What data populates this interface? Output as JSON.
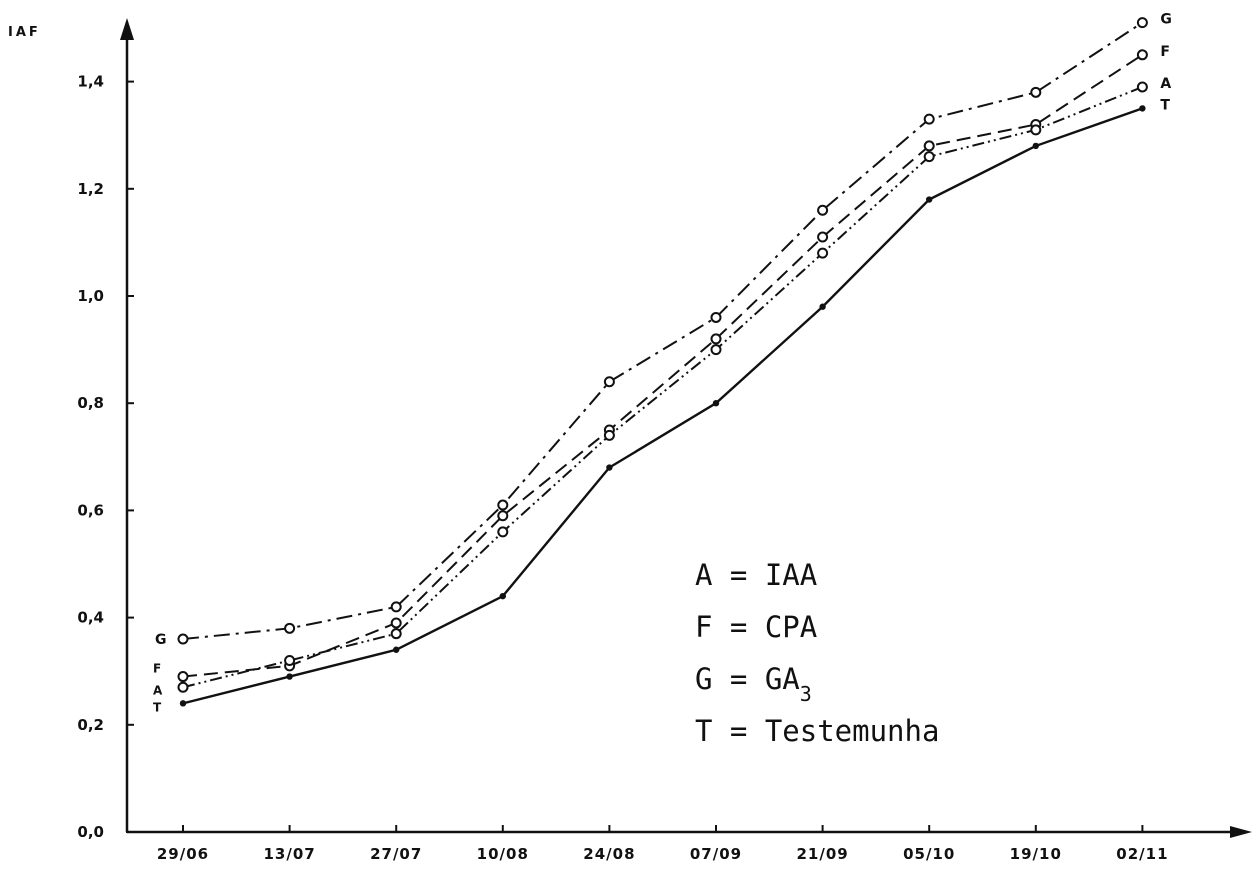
{
  "chart_data": {
    "type": "line",
    "ylabel": "IAF",
    "xlabel": "",
    "categories": [
      "29/06",
      "13/07",
      "27/07",
      "10/08",
      "24/08",
      "07/09",
      "21/09",
      "05/10",
      "19/10",
      "02/11"
    ],
    "y_ticks": [
      "0,0",
      "0,2",
      "0,4",
      "0,6",
      "0,8",
      "1,0",
      "1,2",
      "1,4"
    ],
    "ylim": [
      0,
      1.55
    ],
    "grid": false,
    "legend_position": "bottom-right",
    "series": [
      {
        "name": "G",
        "label": "G",
        "values": [
          0.36,
          0.38,
          0.42,
          0.61,
          0.84,
          0.96,
          1.16,
          1.33,
          1.38,
          1.51
        ],
        "color": "#111111",
        "dash": "16 6 3 6",
        "marker": "open-circle"
      },
      {
        "name": "F",
        "label": "F",
        "values": [
          0.29,
          0.31,
          0.39,
          0.59,
          0.75,
          0.92,
          1.11,
          1.28,
          1.32,
          1.45
        ],
        "color": "#111111",
        "dash": "14 7",
        "marker": "open-circle"
      },
      {
        "name": "A",
        "label": "A",
        "values": [
          0.27,
          0.32,
          0.37,
          0.56,
          0.74,
          0.9,
          1.08,
          1.26,
          1.31,
          1.39
        ],
        "color": "#111111",
        "dash": "12 4 2 4 2 4",
        "marker": "open-circle"
      },
      {
        "name": "T",
        "label": "T",
        "values": [
          0.24,
          0.29,
          0.34,
          0.44,
          0.68,
          0.8,
          0.98,
          1.18,
          1.28,
          1.35
        ],
        "color": "#111111",
        "dash": "",
        "marker": "dot"
      }
    ]
  },
  "legend": [
    {
      "key": "A",
      "sep": "=",
      "text": "IAA",
      "sub": ""
    },
    {
      "key": "F",
      "sep": "=",
      "text": "CPA",
      "sub": ""
    },
    {
      "key": "G",
      "sep": "=",
      "text": "GA",
      "sub": "3"
    },
    {
      "key": "T",
      "sep": "=",
      "text": "Testemunha",
      "sub": ""
    }
  ]
}
